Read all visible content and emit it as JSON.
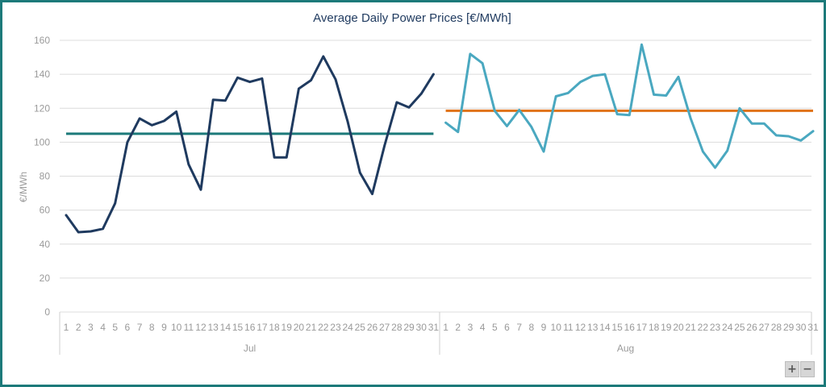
{
  "chart_data": {
    "type": "line",
    "title": "Average Daily Power Prices [€/MWh]",
    "ylabel": "€/MWh",
    "xlabel": "",
    "ylim": [
      0,
      160
    ],
    "yticks": [
      "0",
      "20",
      "40",
      "60",
      "80",
      "100",
      "120",
      "140",
      "160"
    ],
    "grid": true,
    "groups": [
      {
        "name": "Jul",
        "days": [
          "1",
          "2",
          "3",
          "4",
          "5",
          "6",
          "7",
          "8",
          "9",
          "10",
          "11",
          "12",
          "13",
          "14",
          "15",
          "16",
          "17",
          "18",
          "19",
          "20",
          "21",
          "22",
          "23",
          "24",
          "25",
          "26",
          "27",
          "28",
          "29",
          "30",
          "31"
        ],
        "values": [
          57,
          47,
          47.5,
          49,
          64,
          100,
          114,
          110,
          112.5,
          118,
          87,
          72,
          125,
          124.5,
          138,
          135.5,
          137.5,
          91,
          91,
          131.5,
          136.5,
          150.5,
          137,
          112,
          82,
          69.5,
          98,
          123.5,
          120.5,
          128.5,
          140
        ],
        "average": 105,
        "color": "#1f3a5f",
        "average_color": "#1c7a7a"
      },
      {
        "name": "Aug",
        "days": [
          "1",
          "2",
          "3",
          "4",
          "5",
          "6",
          "7",
          "8",
          "9",
          "10",
          "11",
          "12",
          "13",
          "14",
          "15",
          "16",
          "17",
          "18",
          "19",
          "20",
          "21",
          "22",
          "23",
          "24",
          "25",
          "26",
          "27",
          "28",
          "29",
          "30",
          "31"
        ],
        "values": [
          111.5,
          106,
          152,
          146.5,
          118.5,
          109.5,
          119,
          109,
          94.5,
          127,
          129,
          135.5,
          139,
          140,
          116.5,
          116,
          157.5,
          128,
          127.5,
          138.5,
          114,
          94.5,
          85,
          95,
          120,
          111,
          111,
          104,
          103.5,
          101,
          106.5
        ],
        "average": 118.5,
        "color": "#4aa8c0",
        "average_color": "#e07218"
      }
    ]
  },
  "zoom_controls": {
    "plus": "+",
    "minus": "−"
  }
}
